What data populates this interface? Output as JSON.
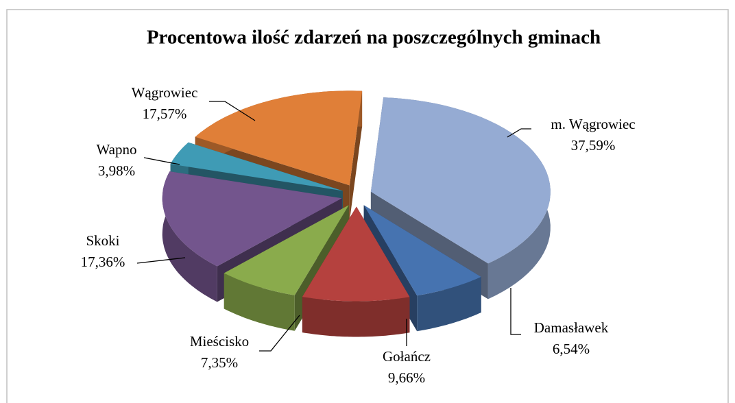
{
  "chart_data": {
    "type": "pie",
    "title": "Procentowa ilość zdarzeń na poszczególnych gminach",
    "categories": [
      "m. Wągrowiec",
      "Damasławek",
      "Gołańcz",
      "Mieścisko",
      "Skoki",
      "Wapno",
      "Wągrowiec"
    ],
    "values": [
      37.59,
      6.54,
      9.66,
      7.35,
      17.36,
      3.98,
      17.57
    ],
    "value_labels": [
      "37,59%",
      "6,54%",
      "9,66%",
      "7,35%",
      "17,36%",
      "3,98%",
      "17,57%"
    ],
    "colors": [
      "#95abd3",
      "#4673b0",
      "#b5413e",
      "#8aab4c",
      "#73558d",
      "#3f9bb5",
      "#e07f38"
    ]
  }
}
